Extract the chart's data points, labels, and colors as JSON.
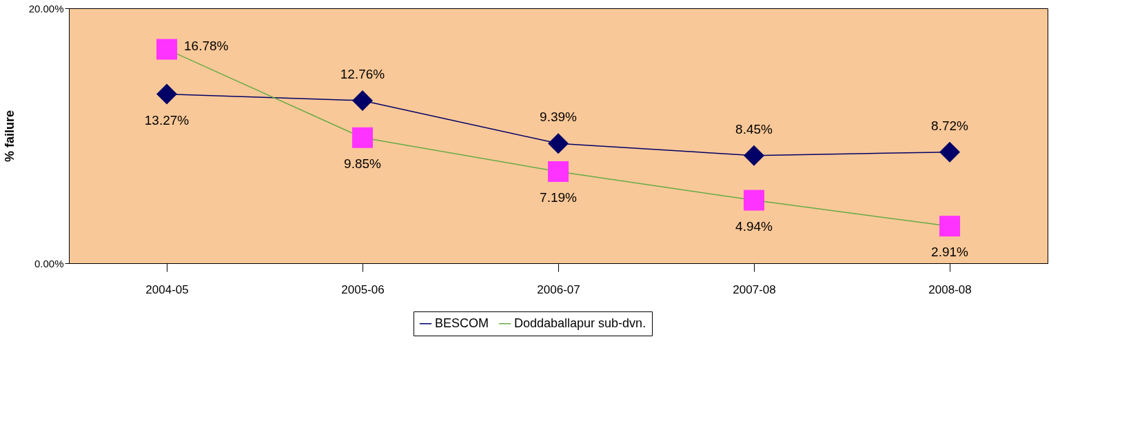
{
  "chart_data": {
    "type": "line",
    "ylabel": "% failure",
    "categories": [
      "2004-05",
      "2005-06",
      "2006-07",
      "2007-08",
      "2008-08"
    ],
    "ylim": [
      0,
      20
    ],
    "yticks": [
      {
        "value": 0,
        "label": "0.00%"
      },
      {
        "value": 20,
        "label": "20.00%"
      }
    ],
    "grid": false,
    "legend": "bottom",
    "series": [
      {
        "name": "BESCOM",
        "color": "#000066",
        "marker": "diamond",
        "values": [
          13.27,
          12.76,
          9.39,
          8.45,
          8.72
        ],
        "value_labels": [
          "13.27%",
          "12.76%",
          "9.39%",
          "8.45%",
          "8.72%"
        ]
      },
      {
        "name": "Doddaballapur sub-dvn.",
        "color": "#66aa44",
        "colors": [
          "#ff33ff",
          "#ff33ff",
          "#ff33ff",
          "#ff33ff",
          "#ff33ff"
        ],
        "marker": "square",
        "values": [
          16.78,
          9.85,
          7.19,
          4.94,
          2.91
        ],
        "value_labels": [
          "16.78%",
          "9.85%",
          "7.19%",
          "4.94%",
          "2.91%"
        ]
      }
    ]
  }
}
